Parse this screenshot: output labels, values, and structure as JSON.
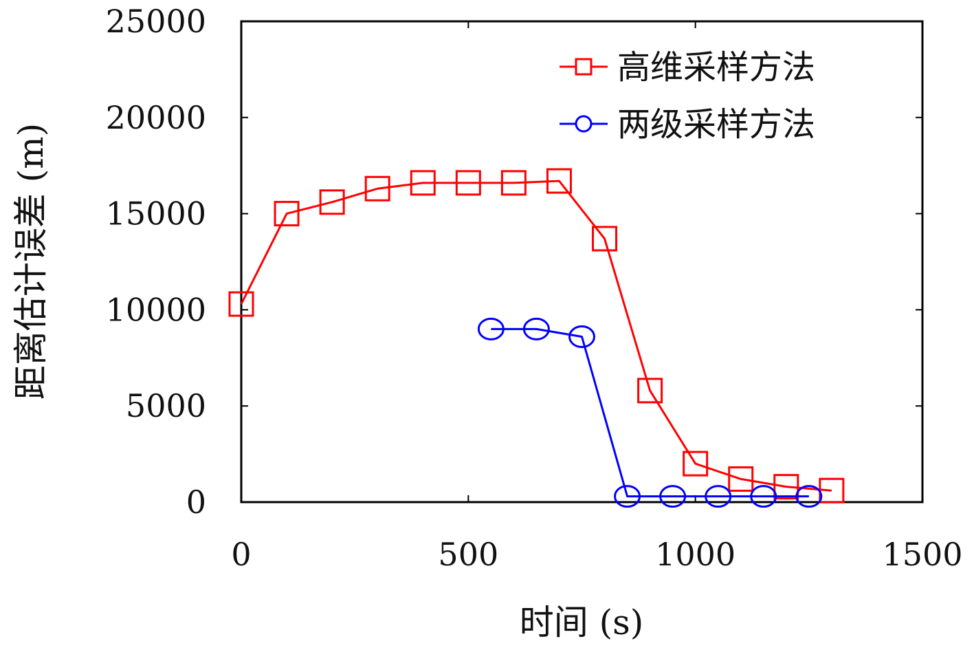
{
  "chart_data": {
    "type": "line",
    "xlabel": "时间 (s)",
    "ylabel": "距离估计误差 (m)",
    "xlim": [
      0,
      1500
    ],
    "ylim": [
      0,
      25000
    ],
    "xticks": [
      "0",
      "500",
      "1000",
      "1500"
    ],
    "yticks": [
      "0",
      "5000",
      "10000",
      "15000",
      "20000",
      "25000"
    ],
    "grid": false,
    "legend_position": "top-right",
    "series": [
      {
        "name": "高维采样方法",
        "color": "#ff0000",
        "marker": "square",
        "x": [
          0,
          100,
          200,
          300,
          400,
          500,
          600,
          700,
          800,
          900,
          1000,
          1100,
          1200,
          1300
        ],
        "y": [
          10300,
          15000,
          15600,
          16300,
          16600,
          16600,
          16600,
          16700,
          13700,
          5800,
          2000,
          1200,
          800,
          600
        ]
      },
      {
        "name": "两级采样方法",
        "color": "#0000ff",
        "marker": "circle",
        "x": [
          550,
          650,
          750,
          850,
          950,
          1050,
          1150,
          1250
        ],
        "y": [
          9000,
          9000,
          8600,
          300,
          300,
          300,
          300,
          300
        ]
      }
    ]
  }
}
